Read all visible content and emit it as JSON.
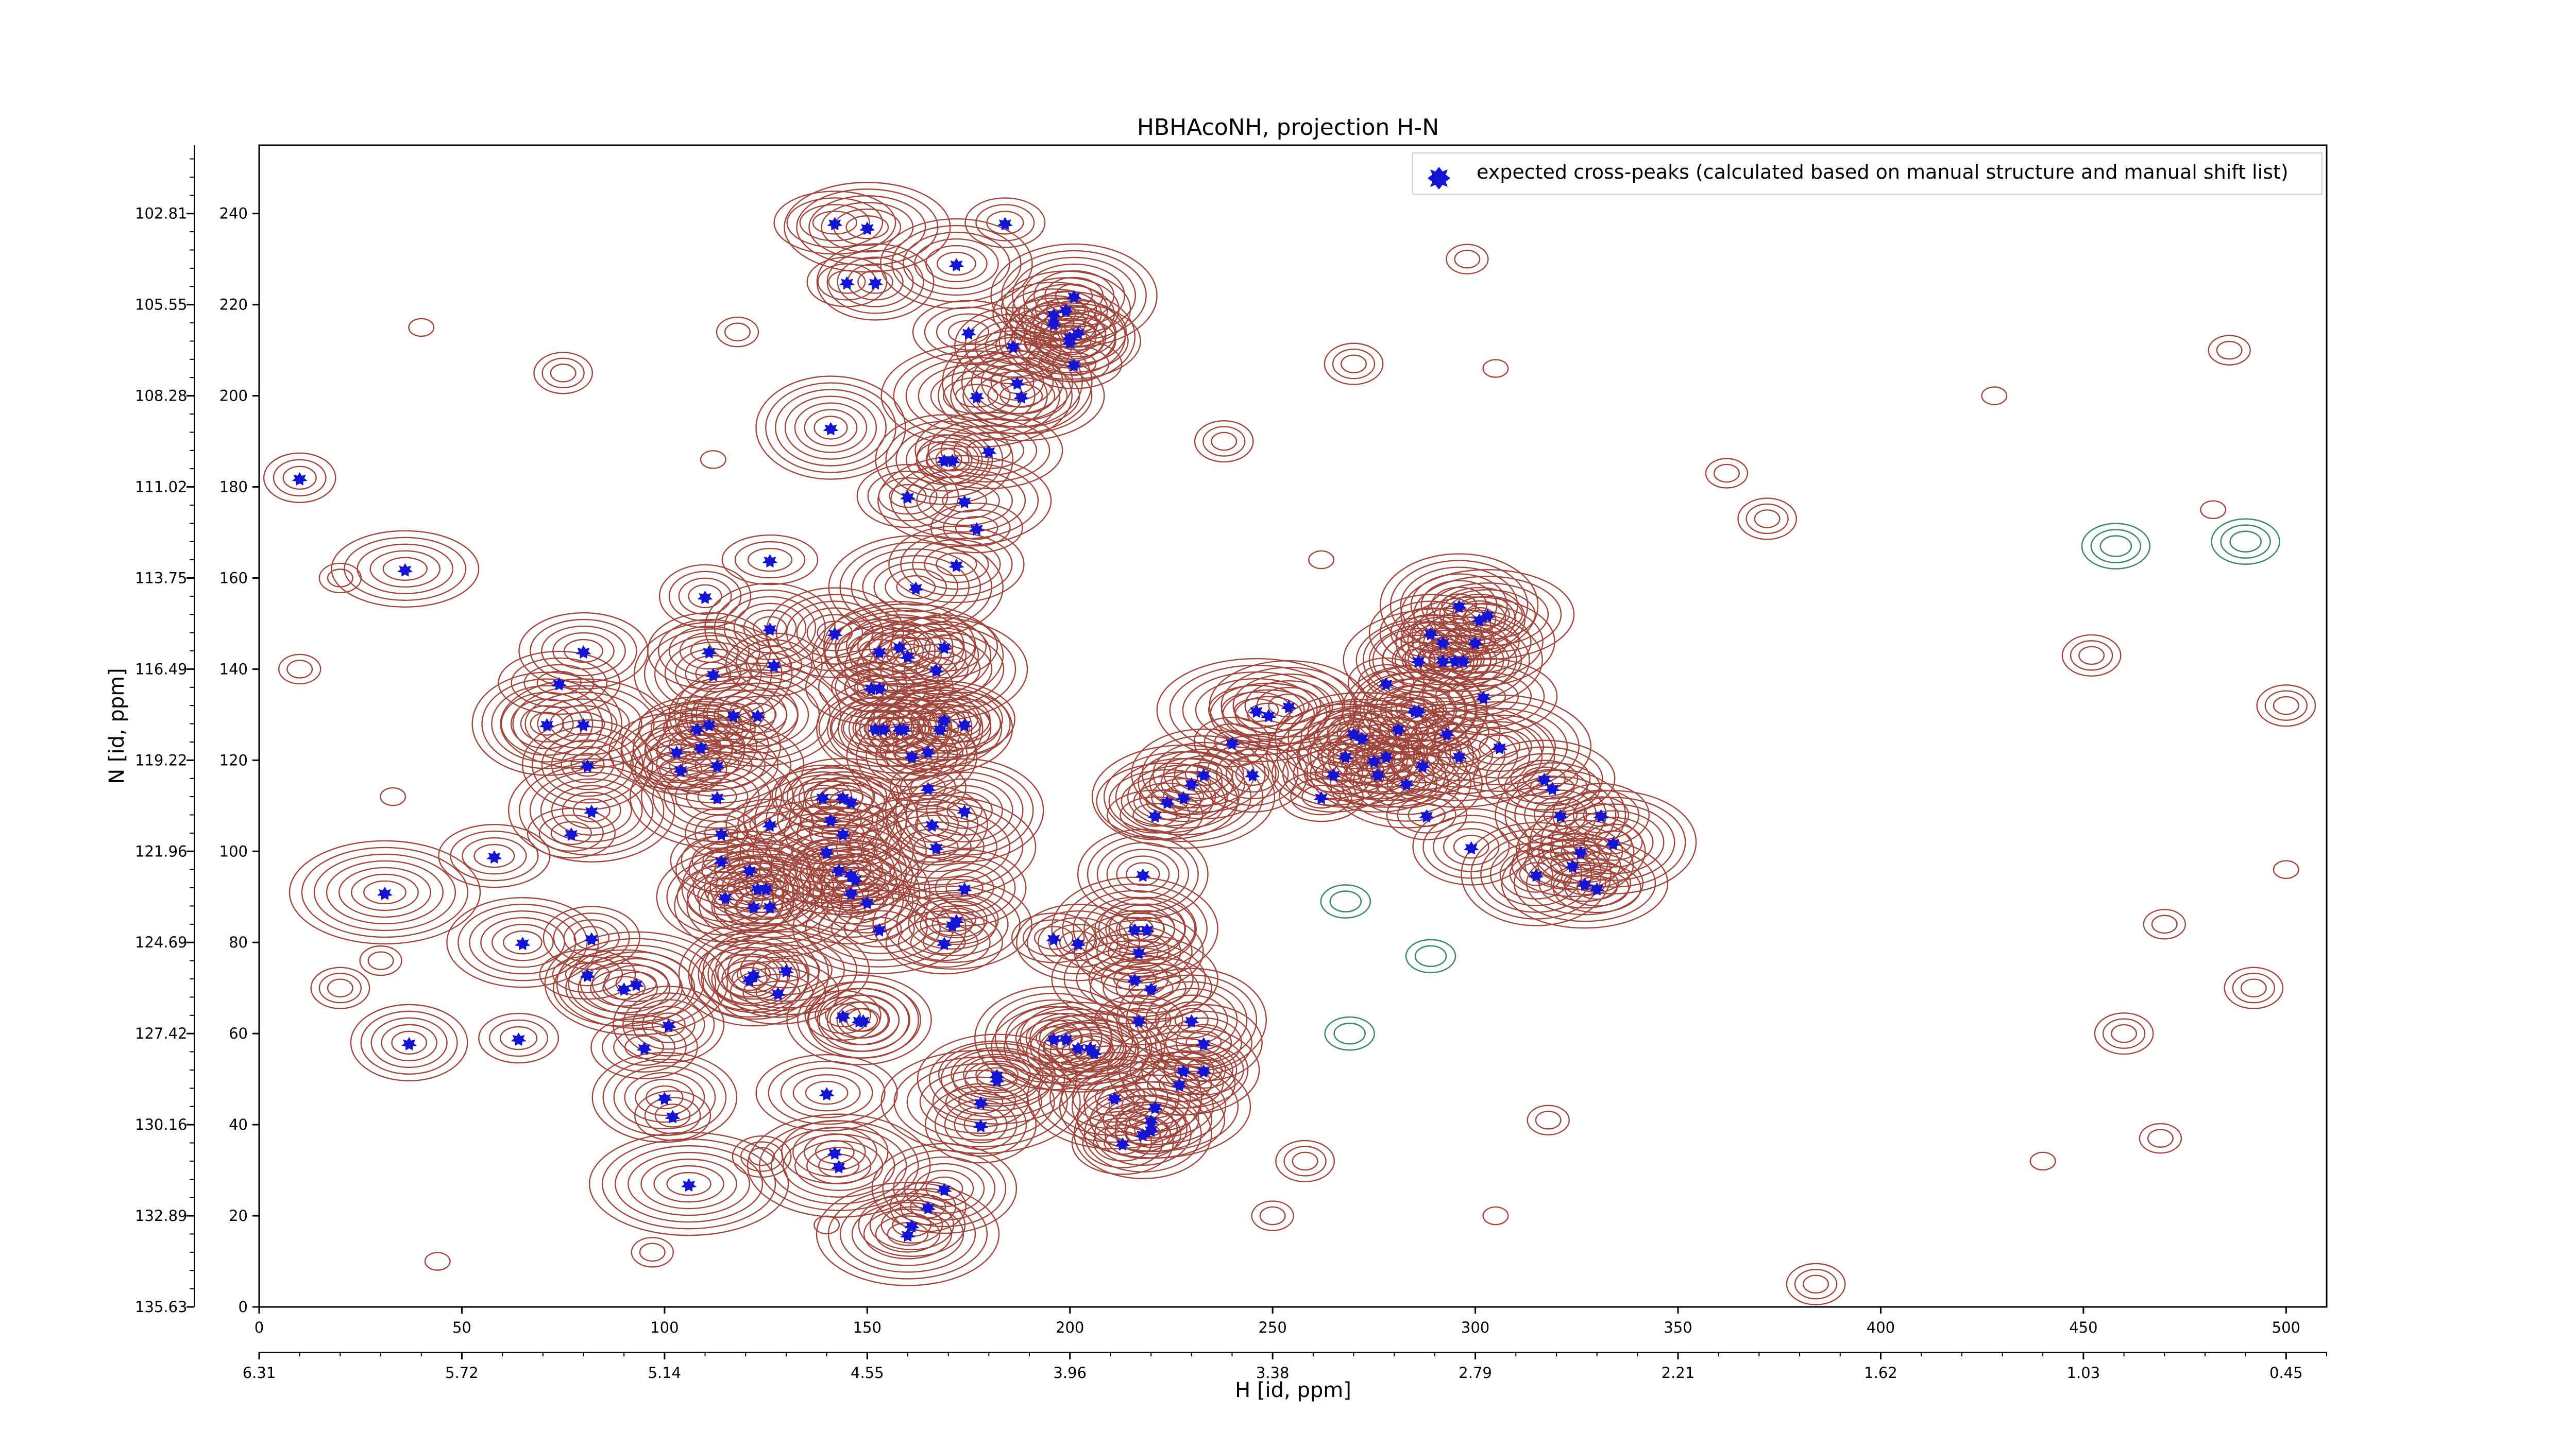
{
  "chart_data": {
    "type": "scatter",
    "title": "HBHAcoNH, projection H-N",
    "xlabel": "H [id, ppm]",
    "ylabel": "N [id, ppm]",
    "xlim": [
      0,
      510
    ],
    "ylim": [
      0,
      255
    ],
    "x_ticks": [
      0,
      50,
      100,
      150,
      200,
      250,
      300,
      350,
      400,
      450,
      500
    ],
    "y_ticks": [
      0,
      20,
      40,
      60,
      80,
      100,
      120,
      140,
      160,
      180,
      200,
      220,
      240
    ],
    "y_ppm_ticks": [
      "135.63",
      "132.89",
      "130.16",
      "127.42",
      "124.69",
      "121.96",
      "119.22",
      "116.49",
      "113.75",
      "111.02",
      "108.28",
      "105.55",
      "102.81"
    ],
    "x_ppm_ticks": [
      "6.31",
      "5.72",
      "5.14",
      "4.55",
      "3.96",
      "3.38",
      "2.79",
      "2.21",
      "1.62",
      "1.03",
      "0.45"
    ],
    "legend": {
      "position": "top-right",
      "label": "expected cross-peaks (calculated based on manual structure and manual shift list)"
    },
    "colors": {
      "peak": "#1414d2",
      "contour_positive": "#a0463c",
      "contour_negative": "#3f8a67"
    },
    "series": [
      {
        "name": "expected cross-peaks (calculated based on manual structure and manual shift list)",
        "points": [
          [
            10,
            182
          ],
          [
            36,
            162
          ],
          [
            31,
            91
          ],
          [
            58,
            99
          ],
          [
            65,
            80
          ],
          [
            64,
            59
          ],
          [
            37,
            58
          ],
          [
            71,
            128
          ],
          [
            74,
            137
          ],
          [
            80,
            128
          ],
          [
            77,
            104
          ],
          [
            80,
            144
          ],
          [
            82,
            109
          ],
          [
            82,
            81
          ],
          [
            81,
            119
          ],
          [
            81,
            73
          ],
          [
            90,
            70
          ],
          [
            93,
            71
          ],
          [
            95,
            57
          ],
          [
            100,
            46
          ],
          [
            102,
            42
          ],
          [
            101,
            62
          ],
          [
            106,
            27
          ],
          [
            108,
            127
          ],
          [
            109,
            123
          ],
          [
            111,
            128
          ],
          [
            111,
            144
          ],
          [
            112,
            139
          ],
          [
            110,
            156
          ],
          [
            113,
            119
          ],
          [
            104,
            118
          ],
          [
            103,
            122
          ],
          [
            113,
            112
          ],
          [
            114,
            98
          ],
          [
            115,
            90
          ],
          [
            114,
            104
          ],
          [
            121,
            96
          ],
          [
            126,
            88
          ],
          [
            125,
            92
          ],
          [
            123,
            92
          ],
          [
            122,
            88
          ],
          [
            121,
            72
          ],
          [
            122,
            73
          ],
          [
            128,
            69
          ],
          [
            130,
            74
          ],
          [
            126,
            106
          ],
          [
            117,
            130
          ],
          [
            123,
            130
          ],
          [
            127,
            141
          ],
          [
            126,
            149
          ],
          [
            126,
            164
          ],
          [
            140,
            47
          ],
          [
            143,
            31
          ],
          [
            142,
            34
          ],
          [
            148,
            63
          ],
          [
            144,
            64
          ],
          [
            149,
            63
          ],
          [
            140,
            100
          ],
          [
            144,
            104
          ],
          [
            143,
            96
          ],
          [
            147,
            94
          ],
          [
            146,
            95
          ],
          [
            146,
            91
          ],
          [
            150,
            89
          ],
          [
            153,
            83
          ],
          [
            146,
            111
          ],
          [
            144,
            112
          ],
          [
            141,
            107
          ],
          [
            139,
            112
          ],
          [
            142,
            148
          ],
          [
            151,
            136
          ],
          [
            153,
            136
          ],
          [
            160,
            143
          ],
          [
            153,
            144
          ],
          [
            158,
            145
          ],
          [
            145,
            225
          ],
          [
            152,
            225
          ],
          [
            141,
            193
          ],
          [
            142,
            238
          ],
          [
            150,
            237
          ],
          [
            152,
            127
          ],
          [
            154,
            127
          ],
          [
            158,
            127
          ],
          [
            159,
            127
          ],
          [
            161,
            121
          ],
          [
            165,
            122
          ],
          [
            169,
            129
          ],
          [
            167,
            140
          ],
          [
            169,
            145
          ],
          [
            168,
            127
          ],
          [
            165,
            114
          ],
          [
            166,
            106
          ],
          [
            167,
            101
          ],
          [
            169,
            80
          ],
          [
            171,
            84
          ],
          [
            172,
            85
          ],
          [
            174,
            92
          ],
          [
            174,
            109
          ],
          [
            174,
            128
          ],
          [
            174,
            177
          ],
          [
            177,
            171
          ],
          [
            172,
            163
          ],
          [
            162,
            158
          ],
          [
            160,
            178
          ],
          [
            169,
            186
          ],
          [
            171,
            186
          ],
          [
            180,
            188
          ],
          [
            177,
            200
          ],
          [
            175,
            214
          ],
          [
            172,
            229
          ],
          [
            184,
            238
          ],
          [
            186,
            211
          ],
          [
            187,
            203
          ],
          [
            196,
            218
          ],
          [
            188,
            200
          ],
          [
            196,
            216
          ],
          [
            199,
            219
          ],
          [
            201,
            222
          ],
          [
            202,
            214
          ],
          [
            200,
            213
          ],
          [
            201,
            207
          ],
          [
            200,
            212
          ],
          [
            160,
            16
          ],
          [
            161,
            18
          ],
          [
            169,
            26
          ],
          [
            165,
            22
          ],
          [
            178,
            40
          ],
          [
            178,
            45
          ],
          [
            182,
            51
          ],
          [
            182,
            50
          ],
          [
            196,
            81
          ],
          [
            202,
            80
          ],
          [
            196,
            59
          ],
          [
            199,
            59
          ],
          [
            202,
            57
          ],
          [
            205,
            57
          ],
          [
            206,
            56
          ],
          [
            211,
            46
          ],
          [
            213,
            36
          ],
          [
            218,
            38
          ],
          [
            220,
            39
          ],
          [
            220,
            41
          ],
          [
            221,
            44
          ],
          [
            227,
            49
          ],
          [
            228,
            52
          ],
          [
            233,
            52
          ],
          [
            233,
            58
          ],
          [
            230,
            63
          ],
          [
            220,
            70
          ],
          [
            216,
            72
          ],
          [
            217,
            63
          ],
          [
            217,
            78
          ],
          [
            216,
            83
          ],
          [
            219,
            83
          ],
          [
            218,
            95
          ],
          [
            221,
            108
          ],
          [
            224,
            111
          ],
          [
            228,
            112
          ],
          [
            230,
            115
          ],
          [
            233,
            117
          ],
          [
            240,
            124
          ],
          [
            245,
            117
          ],
          [
            246,
            131
          ],
          [
            249,
            130
          ],
          [
            254,
            132
          ],
          [
            262,
            112
          ],
          [
            265,
            117
          ],
          [
            268,
            121
          ],
          [
            270,
            126
          ],
          [
            272,
            125
          ],
          [
            275,
            120
          ],
          [
            276,
            117
          ],
          [
            278,
            121
          ],
          [
            281,
            127
          ],
          [
            286,
            131
          ],
          [
            295,
            142
          ],
          [
            302,
            134
          ],
          [
            296,
            121
          ],
          [
            287,
            119
          ],
          [
            283,
            115
          ],
          [
            288,
            108
          ],
          [
            299,
            101
          ],
          [
            315,
            95
          ],
          [
            324,
            97
          ],
          [
            327,
            93
          ],
          [
            330,
            92
          ],
          [
            326,
            100
          ],
          [
            334,
            102
          ],
          [
            331,
            108
          ],
          [
            321,
            108
          ],
          [
            319,
            114
          ],
          [
            317,
            116
          ],
          [
            306,
            123
          ],
          [
            293,
            126
          ],
          [
            285,
            131
          ],
          [
            278,
            137
          ],
          [
            286,
            142
          ],
          [
            292,
            142
          ],
          [
            297,
            142
          ],
          [
            300,
            146
          ],
          [
            292,
            146
          ],
          [
            289,
            148
          ],
          [
            296,
            154
          ],
          [
            301,
            151
          ],
          [
            303,
            152
          ]
        ]
      }
    ]
  }
}
